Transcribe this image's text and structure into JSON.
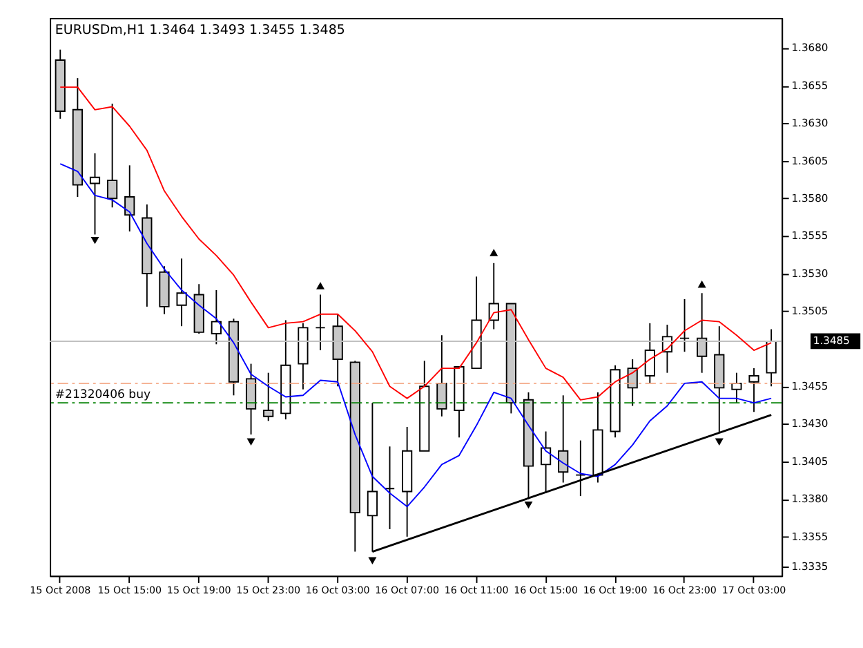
{
  "chart_data": {
    "type": "candlestick",
    "title": "EURUSDm,H1  1.3464 1.3493 1.3455 1.3485",
    "categories": [
      "15 Oct 2008",
      null,
      null,
      null,
      "15 Oct 15:00",
      null,
      null,
      null,
      "15 Oct 19:00",
      null,
      null,
      null,
      "15 Oct 23:00",
      null,
      null,
      null,
      "16 Oct 03:00",
      null,
      null,
      null,
      "16 Oct 07:00",
      null,
      null,
      null,
      "16 Oct 11:00",
      null,
      null,
      null,
      "16 Oct 15:00",
      null,
      null,
      null,
      "16 Oct 19:00",
      null,
      null,
      null,
      "16 Oct 23:00",
      null,
      null,
      null,
      "17 Oct 03:00",
      null
    ],
    "ohlc": [
      [
        1.3672,
        1.3679,
        1.3633,
        1.3638
      ],
      [
        1.3639,
        1.366,
        1.3581,
        1.3589
      ],
      [
        1.359,
        1.361,
        1.3556,
        1.3594
      ],
      [
        1.3592,
        1.3643,
        1.3574,
        1.358
      ],
      [
        1.3581,
        1.3602,
        1.3558,
        1.3569
      ],
      [
        1.3567,
        1.3576,
        1.3508,
        1.353
      ],
      [
        1.3531,
        1.3535,
        1.3503,
        1.3508
      ],
      [
        1.3509,
        1.354,
        1.3495,
        1.3517
      ],
      [
        1.3516,
        1.3523,
        1.349,
        1.3491
      ],
      [
        1.349,
        1.3519,
        1.3483,
        1.3498
      ],
      [
        1.3498,
        1.35,
        1.3449,
        1.3458
      ],
      [
        1.346,
        1.347,
        1.3423,
        1.344
      ],
      [
        1.3439,
        1.3464,
        1.3432,
        1.3435
      ],
      [
        1.3437,
        1.3499,
        1.3433,
        1.3469
      ],
      [
        1.347,
        1.3497,
        1.3453,
        1.3494
      ],
      [
        1.3494,
        1.3516,
        1.3479,
        1.3494
      ],
      [
        1.3495,
        1.3503,
        1.3455,
        1.3473
      ],
      [
        1.3471,
        1.3472,
        1.3345,
        1.3371
      ],
      [
        1.3369,
        1.3444,
        1.3345,
        1.3385
      ],
      [
        1.3387,
        1.3415,
        1.336,
        1.3387
      ],
      [
        1.3385,
        1.3428,
        1.3355,
        1.3412
      ],
      [
        1.3412,
        1.3472,
        1.3412,
        1.3455
      ],
      [
        1.3457,
        1.3489,
        1.3435,
        1.344
      ],
      [
        1.3439,
        1.3468,
        1.3421,
        1.3468
      ],
      [
        1.3467,
        1.3528,
        1.3467,
        1.3499
      ],
      [
        1.3499,
        1.3537,
        1.3493,
        1.351
      ],
      [
        1.351,
        1.351,
        1.3437,
        1.3444
      ],
      [
        1.3446,
        1.3451,
        1.338,
        1.3402
      ],
      [
        1.3403,
        1.3425,
        1.3384,
        1.3414
      ],
      [
        1.3412,
        1.3449,
        1.3391,
        1.3398
      ],
      [
        1.3396,
        1.3419,
        1.3382,
        1.3396
      ],
      [
        1.3396,
        1.3451,
        1.3391,
        1.3426
      ],
      [
        1.3425,
        1.3469,
        1.3421,
        1.3466
      ],
      [
        1.3467,
        1.3473,
        1.3442,
        1.3454
      ],
      [
        1.3462,
        1.3497,
        1.3457,
        1.3479
      ],
      [
        1.3478,
        1.3496,
        1.3464,
        1.3488
      ],
      [
        1.3487,
        1.3513,
        1.3478,
        1.3487
      ],
      [
        1.3487,
        1.3517,
        1.3464,
        1.3475
      ],
      [
        1.3476,
        1.3495,
        1.3424,
        1.3454
      ],
      [
        1.3453,
        1.3464,
        1.3444,
        1.3457
      ],
      [
        1.3458,
        1.3467,
        1.3438,
        1.3462
      ],
      [
        1.3464,
        1.3493,
        1.3455,
        1.3485
      ]
    ],
    "series": [
      {
        "type": "line",
        "color": "#ff0000",
        "values": [
          1.3654,
          1.3654,
          1.3639,
          1.3641,
          1.3628,
          1.3612,
          1.3585,
          1.3568,
          1.3553,
          1.3542,
          1.3529,
          1.3511,
          1.3494,
          1.3497,
          1.3498,
          1.3503,
          1.3503,
          1.3492,
          1.3478,
          1.3455,
          1.3447,
          1.3455,
          1.3467,
          1.3467,
          1.3484,
          1.3504,
          1.3506,
          1.3486,
          1.3467,
          1.3461,
          1.3446,
          1.3448,
          1.3458,
          1.3464,
          1.3473,
          1.348,
          1.3492,
          1.3499,
          1.3498,
          1.3489,
          1.3479,
          1.3484
        ]
      },
      {
        "type": "line",
        "color": "#0000ff",
        "values": [
          1.3603,
          1.3598,
          1.3582,
          1.3579,
          1.3571,
          1.355,
          1.3533,
          1.3519,
          1.3509,
          1.35,
          1.3484,
          1.3463,
          1.3455,
          1.3448,
          1.3449,
          1.3459,
          1.3458,
          1.3423,
          1.3395,
          1.3384,
          1.3375,
          1.3388,
          1.3403,
          1.3409,
          1.3429,
          1.3451,
          1.3447,
          1.3429,
          1.3412,
          1.3404,
          1.3397,
          1.3395,
          1.3403,
          1.3416,
          1.3432,
          1.3442,
          1.3457,
          1.3458,
          1.3447,
          1.3447,
          1.3444,
          1.3447
        ]
      },
      {
        "type": "line",
        "color": "#000000",
        "values": [
          null,
          null,
          null,
          null,
          null,
          null,
          null,
          null,
          null,
          null,
          null,
          null,
          null,
          null,
          null,
          null,
          null,
          null,
          1.3345,
          null,
          null,
          null,
          null,
          null,
          null,
          null,
          null,
          null,
          null,
          null,
          null,
          null,
          null,
          null,
          null,
          null,
          null,
          null,
          null,
          null,
          null,
          1.3436
        ]
      },
      {
        "type": "scatter",
        "color": "#000000",
        "marker": "triangle",
        "values": [
          null,
          null,
          null,
          null,
          null,
          null,
          null,
          null,
          null,
          null,
          null,
          null,
          null,
          null,
          null,
          1.3522,
          null,
          null,
          null,
          null,
          null,
          null,
          null,
          null,
          null,
          1.3544,
          null,
          null,
          null,
          null,
          null,
          null,
          null,
          null,
          null,
          null,
          null,
          1.3523,
          null,
          null,
          null,
          null
        ]
      },
      {
        "type": "scatter",
        "color": "#000000",
        "marker": "triangle-down",
        "values": [
          null,
          null,
          1.3552,
          null,
          null,
          null,
          null,
          null,
          null,
          null,
          null,
          1.3418,
          null,
          null,
          null,
          null,
          null,
          null,
          1.3339,
          null,
          null,
          null,
          null,
          null,
          null,
          null,
          null,
          1.3376,
          null,
          null,
          null,
          null,
          null,
          null,
          null,
          null,
          null,
          null,
          1.3418,
          null,
          null,
          null
        ]
      }
    ],
    "ref_lines": [
      {
        "axis": "y",
        "value": 1.3485,
        "label": "1.3485",
        "color": "#c0c0c0",
        "line_style": "solid"
      },
      {
        "axis": "y",
        "value": 1.3457,
        "color": "#f4a582",
        "line_style": "dashed"
      },
      {
        "axis": "y",
        "value": 1.3444,
        "label": "#21320406 buy",
        "color": "#008000",
        "line_style": "dashed"
      }
    ],
    "ylim": [
      1.3329,
      1.37
    ],
    "yticks": [
      {
        "value": 1.368,
        "label": "1.3680"
      },
      1.3655,
      {
        "value": 1.363,
        "label": "1.3630"
      },
      1.3605,
      {
        "value": 1.358,
        "label": "1.3580"
      },
      1.3555,
      {
        "value": 1.353,
        "label": "1.3530"
      },
      1.3505,
      1.3455,
      {
        "value": 1.343,
        "label": "1.3430"
      },
      1.3405,
      {
        "value": 1.338,
        "label": "1.3380"
      },
      1.3355,
      1.3335
    ],
    "grid": false
  }
}
